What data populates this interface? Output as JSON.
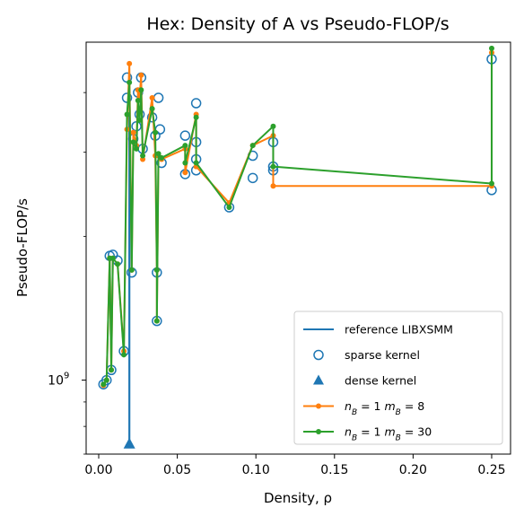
{
  "chart_data": {
    "type": "line",
    "title": "Hex: Density of A vs Pseudo-FLOP/s",
    "xlabel": "Density, ρ",
    "ylabel": "Pseudo-FLOP/s",
    "xlim": [
      -0.008,
      0.262
    ],
    "ylim": [
      700000000.0,
      5100000000.0
    ],
    "y_scale": "log",
    "grid": false,
    "legend_position": "lower-right",
    "x_ticks": [
      {
        "value": 0.0,
        "label": "0.00"
      },
      {
        "value": 0.05,
        "label": "0.05"
      },
      {
        "value": 0.1,
        "label": "0.10"
      },
      {
        "value": 0.15,
        "label": "0.15"
      },
      {
        "value": 0.2,
        "label": "0.20"
      },
      {
        "value": 0.25,
        "label": "0.25"
      }
    ],
    "y_ticks": [
      {
        "value": 1000000000.0,
        "base": "10",
        "exp": "9"
      }
    ],
    "y_minor_ticks": [
      700000000.0,
      800000000.0,
      900000000.0,
      2000000000.0,
      3000000000.0,
      4000000000.0
    ],
    "series": [
      {
        "name": "reference LIBXSMM",
        "legend_label": "reference LIBXSMM",
        "marker": "none",
        "color": "#1f77b4",
        "points": [
          [
            0.0195,
            735000000.0
          ],
          [
            0.0195,
            3600000000.0
          ]
        ]
      },
      {
        "name": "sparse kernel",
        "legend_label": "sparse kernel",
        "marker": "open-circle",
        "color": "#1f77b4",
        "points": [
          [
            0.003,
            980000000.0
          ],
          [
            0.005,
            1000000000.0
          ],
          [
            0.007,
            1820000000.0
          ],
          [
            0.008,
            1050000000.0
          ],
          [
            0.009,
            1830000000.0
          ],
          [
            0.012,
            1780000000.0
          ],
          [
            0.016,
            1150000000.0
          ],
          [
            0.018,
            4300000000.0
          ],
          [
            0.018,
            3900000000.0
          ],
          [
            0.021,
            1680000000.0
          ],
          [
            0.022,
            3200000000.0
          ],
          [
            0.024,
            3400000000.0
          ],
          [
            0.025,
            4000000000.0
          ],
          [
            0.026,
            3600000000.0
          ],
          [
            0.027,
            4300000000.0
          ],
          [
            0.028,
            3050000000.0
          ],
          [
            0.034,
            3550000000.0
          ],
          [
            0.036,
            3250000000.0
          ],
          [
            0.037,
            1680000000.0
          ],
          [
            0.037,
            1330000000.0
          ],
          [
            0.038,
            3900000000.0
          ],
          [
            0.039,
            3350000000.0
          ],
          [
            0.04,
            2850000000.0
          ],
          [
            0.055,
            3250000000.0
          ],
          [
            0.055,
            2700000000.0
          ],
          [
            0.062,
            3800000000.0
          ],
          [
            0.062,
            3150000000.0
          ],
          [
            0.062,
            2900000000.0
          ],
          [
            0.062,
            2750000000.0
          ],
          [
            0.083,
            2300000000.0
          ],
          [
            0.098,
            2950000000.0
          ],
          [
            0.098,
            2650000000.0
          ],
          [
            0.111,
            3150000000.0
          ],
          [
            0.111,
            2800000000.0
          ],
          [
            0.111,
            2750000000.0
          ],
          [
            0.25,
            4700000000.0
          ],
          [
            0.25,
            2500000000.0
          ]
        ]
      },
      {
        "name": "dense kernel",
        "legend_label": "dense kernel",
        "marker": "filled-triangle",
        "color": "#1f77b4",
        "points": [
          [
            0.0195,
            735000000.0
          ]
        ]
      },
      {
        "name": "nB=1 mB=8",
        "legend_label": "n_B = 1  m_B = 8",
        "marker": "dot",
        "color": "#ff7f0e",
        "points": [
          [
            0.003,
            975000000.0
          ],
          [
            0.005,
            1000000000.0
          ],
          [
            0.007,
            1800000000.0
          ],
          [
            0.008,
            1050000000.0
          ],
          [
            0.009,
            1800000000.0
          ],
          [
            0.012,
            1750000000.0
          ],
          [
            0.016,
            1150000000.0
          ],
          [
            0.018,
            3350000000.0
          ],
          [
            0.0195,
            4600000000.0
          ],
          [
            0.021,
            1700000000.0
          ],
          [
            0.022,
            3300000000.0
          ],
          [
            0.024,
            3100000000.0
          ],
          [
            0.025,
            4050000000.0
          ],
          [
            0.026,
            3900000000.0
          ],
          [
            0.027,
            4350000000.0
          ],
          [
            0.028,
            2900000000.0
          ],
          [
            0.034,
            3900000000.0
          ],
          [
            0.036,
            2950000000.0
          ],
          [
            0.037,
            1700000000.0
          ],
          [
            0.037,
            1330000000.0
          ],
          [
            0.038,
            2950000000.0
          ],
          [
            0.04,
            2900000000.0
          ],
          [
            0.055,
            3050000000.0
          ],
          [
            0.055,
            2720000000.0
          ],
          [
            0.062,
            3600000000.0
          ],
          [
            0.062,
            2800000000.0
          ],
          [
            0.083,
            2350000000.0
          ],
          [
            0.098,
            3100000000.0
          ],
          [
            0.111,
            3250000000.0
          ],
          [
            0.111,
            2550000000.0
          ],
          [
            0.25,
            2550000000.0
          ],
          [
            0.25,
            4850000000.0
          ]
        ]
      },
      {
        "name": "nB=1 mB=30",
        "legend_label": "n_B = 1  m_B = 30",
        "marker": "dot",
        "color": "#2ca02c",
        "points": [
          [
            0.003,
            980000000.0
          ],
          [
            0.005,
            1000000000.0
          ],
          [
            0.007,
            1800000000.0
          ],
          [
            0.008,
            1050000000.0
          ],
          [
            0.009,
            1800000000.0
          ],
          [
            0.012,
            1750000000.0
          ],
          [
            0.016,
            1130000000.0
          ],
          [
            0.018,
            3600000000.0
          ],
          [
            0.0195,
            4200000000.0
          ],
          [
            0.021,
            1700000000.0
          ],
          [
            0.022,
            3150000000.0
          ],
          [
            0.024,
            3050000000.0
          ],
          [
            0.025,
            3850000000.0
          ],
          [
            0.026,
            3500000000.0
          ],
          [
            0.027,
            4050000000.0
          ],
          [
            0.028,
            2950000000.0
          ],
          [
            0.034,
            3700000000.0
          ],
          [
            0.036,
            3300000000.0
          ],
          [
            0.037,
            1700000000.0
          ],
          [
            0.037,
            1330000000.0
          ],
          [
            0.038,
            2980000000.0
          ],
          [
            0.04,
            2920000000.0
          ],
          [
            0.055,
            3100000000.0
          ],
          [
            0.055,
            2850000000.0
          ],
          [
            0.062,
            3550000000.0
          ],
          [
            0.062,
            2850000000.0
          ],
          [
            0.083,
            2300000000.0
          ],
          [
            0.098,
            3100000000.0
          ],
          [
            0.111,
            3400000000.0
          ],
          [
            0.111,
            2800000000.0
          ],
          [
            0.25,
            2580000000.0
          ],
          [
            0.25,
            4950000000.0
          ]
        ]
      }
    ]
  }
}
